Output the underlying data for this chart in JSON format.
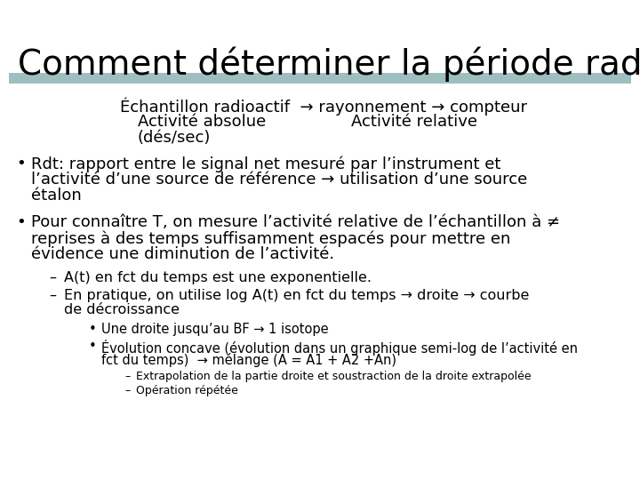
{
  "title": "Comment déterminer la période radioactive ?",
  "title_fontsize": 28,
  "bg_color": "#ffffff",
  "rule_color": "#9dbfbf",
  "header_line1": "Échantillon radioactif  → rayonnement → compteur",
  "header_line2_left": "Activité absolue",
  "header_line2_right": "Activité relative",
  "header_line3": "(dés/sec)",
  "bullet1_lines": [
    "Rdt: rapport entre le signal net mesuré par l’instrument et",
    "l’activité d’une source de référence → utilisation d’une source",
    "étalon"
  ],
  "bullet2_lines": [
    "Pour connaître T, on mesure l’activité relative de l’échantillon à ≠",
    "reprises à des temps suffisamment espacés pour mettre en",
    "évidence une diminution de l’activité."
  ],
  "sub1": "A(t) en fct du temps est une exponentielle.",
  "sub2_lines": [
    "En pratique, on utilise log A(t) en fct du temps → droite → courbe",
    "de décroissance"
  ],
  "subsub1": "Une droite jusqu’au BF → 1 isotope",
  "subsub2_lines": [
    "Évolution concave (évolution dans un graphique semi-log de l’activité en",
    "fct du temps)  → mélange (A = A1 + A2 +An)"
  ],
  "subsubsub1": "Extrapolation de la partie droite et soustraction de la droite extrapolée",
  "subsubsub2": "Opération répétée",
  "fs_title": 28,
  "fs_body": 13,
  "fs_sub": 11.5,
  "fs_subsub": 10.5,
  "fs_subsubsub": 9
}
